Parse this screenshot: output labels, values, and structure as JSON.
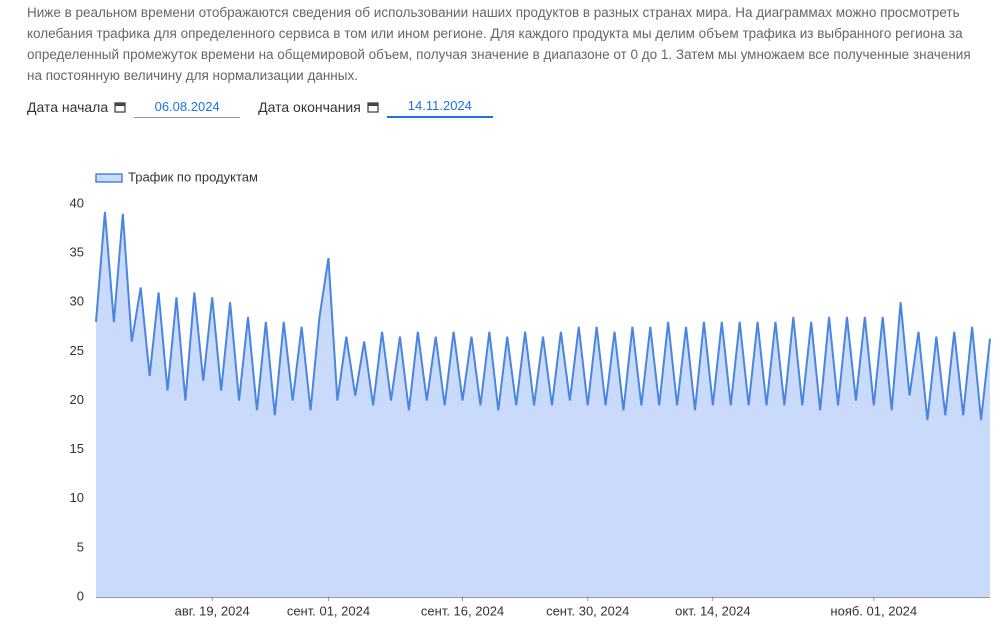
{
  "intro": "Ниже в реальном времени отображаются сведения об использовании наших продуктов в разных странах мира. На диаграммах можно просмотреть колебания трафика для определенного сервиса в том или ином регионе. Для каждого продукта мы делим объем трафика из выбранного региона за определенный промежуток времени на общемировой объем, получая значение в диапазоне от 0 до 1. Затем мы умножаем все полученные значения на постоянную величину для нормализации данных.",
  "start_label": "Дата начала",
  "start_value": "06.08.2024",
  "end_label": "Дата окончания",
  "end_value": "14.11.2024",
  "chart_data": {
    "type": "area",
    "x": [
      "2024-08-06",
      "2024-08-07",
      "2024-08-08",
      "2024-08-09",
      "2024-08-10",
      "2024-08-11",
      "2024-08-12",
      "2024-08-13",
      "2024-08-14",
      "2024-08-15",
      "2024-08-16",
      "2024-08-17",
      "2024-08-18",
      "2024-08-19",
      "2024-08-20",
      "2024-08-21",
      "2024-08-22",
      "2024-08-23",
      "2024-08-24",
      "2024-08-25",
      "2024-08-26",
      "2024-08-27",
      "2024-08-28",
      "2024-08-29",
      "2024-08-30",
      "2024-08-31",
      "2024-09-01",
      "2024-09-02",
      "2024-09-03",
      "2024-09-04",
      "2024-09-05",
      "2024-09-06",
      "2024-09-07",
      "2024-09-08",
      "2024-09-09",
      "2024-09-10",
      "2024-09-11",
      "2024-09-12",
      "2024-09-13",
      "2024-09-14",
      "2024-09-15",
      "2024-09-16",
      "2024-09-17",
      "2024-09-18",
      "2024-09-19",
      "2024-09-20",
      "2024-09-21",
      "2024-09-22",
      "2024-09-23",
      "2024-09-24",
      "2024-09-25",
      "2024-09-26",
      "2024-09-27",
      "2024-09-28",
      "2024-09-29",
      "2024-09-30",
      "2024-10-01",
      "2024-10-02",
      "2024-10-03",
      "2024-10-04",
      "2024-10-05",
      "2024-10-06",
      "2024-10-07",
      "2024-10-08",
      "2024-10-09",
      "2024-10-10",
      "2024-10-11",
      "2024-10-12",
      "2024-10-13",
      "2024-10-14",
      "2024-10-15",
      "2024-10-16",
      "2024-10-17",
      "2024-10-18",
      "2024-10-19",
      "2024-10-20",
      "2024-10-21",
      "2024-10-22",
      "2024-10-23",
      "2024-10-24",
      "2024-10-25",
      "2024-10-26",
      "2024-10-27",
      "2024-10-28",
      "2024-10-29",
      "2024-10-30",
      "2024-10-31",
      "2024-11-01",
      "2024-11-02",
      "2024-11-03",
      "2024-11-04",
      "2024-11-05",
      "2024-11-06",
      "2024-11-07",
      "2024-11-08",
      "2024-11-09",
      "2024-11-10",
      "2024-11-11",
      "2024-11-12",
      "2024-11-13",
      "2024-11-14"
    ],
    "series": [
      {
        "name": "Трафик по продуктам",
        "color": "#4a86e0",
        "fill": "#c9dafb",
        "values": [
          28,
          39.2,
          28,
          39,
          26,
          31.5,
          22.5,
          31,
          21,
          30.5,
          20,
          31,
          22,
          30.5,
          21,
          30,
          20,
          28.5,
          19,
          28,
          18.5,
          28,
          20,
          27.5,
          19,
          28.5,
          34.5,
          20,
          26.5,
          20.5,
          26,
          19.5,
          27,
          20,
          26.5,
          19,
          27,
          20,
          26.5,
          19.5,
          27,
          20,
          26.5,
          19.5,
          27,
          19,
          26.5,
          19.5,
          27,
          19.5,
          26.5,
          19.5,
          27,
          20,
          27.5,
          19.5,
          27.5,
          19.5,
          27,
          19,
          27.5,
          19.5,
          27.5,
          19.5,
          28,
          19.5,
          27.5,
          19,
          28,
          19.5,
          28,
          19.5,
          28,
          19.5,
          28,
          19.5,
          28,
          19.5,
          28.5,
          19.5,
          28,
          19,
          28.5,
          19.5,
          28.5,
          20,
          28.5,
          19.5,
          28.5,
          19,
          30,
          20.5,
          27,
          18,
          26.5,
          18.5,
          27,
          18.5,
          27.5,
          18,
          26.3
        ]
      }
    ],
    "xlim": [
      "2024-08-06",
      "2024-11-14"
    ],
    "xticks": [
      {
        "value": "2024-08-19",
        "label": "авг. 19, 2024"
      },
      {
        "value": "2024-09-01",
        "label": "сент. 01, 2024"
      },
      {
        "value": "2024-09-16",
        "label": "сент. 16, 2024"
      },
      {
        "value": "2024-09-30",
        "label": "сент. 30, 2024"
      },
      {
        "value": "2024-10-14",
        "label": "окт. 14, 2024"
      },
      {
        "value": "2024-11-01",
        "label": "нояб. 01, 2024"
      }
    ],
    "ylim": [
      0,
      40
    ],
    "yticks": [
      0,
      5,
      10,
      15,
      20,
      25,
      30,
      35,
      40
    ],
    "legend": "top-left"
  }
}
